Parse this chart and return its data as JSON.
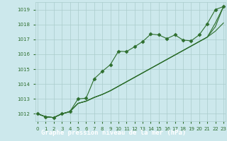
{
  "title": "Graphe pression niveau de la mer (hPa)",
  "background_color": "#cce8ec",
  "grid_color": "#aacccc",
  "line_color": "#2d6e2d",
  "xlim": [
    -0.3,
    23.3
  ],
  "ylim": [
    1011.5,
    1019.5
  ],
  "yticks": [
    1012,
    1013,
    1014,
    1015,
    1016,
    1017,
    1018,
    1019
  ],
  "xticks": [
    0,
    1,
    2,
    3,
    4,
    5,
    6,
    7,
    8,
    9,
    10,
    11,
    12,
    13,
    14,
    15,
    16,
    17,
    18,
    19,
    20,
    21,
    22,
    23
  ],
  "series": [
    [
      1012.0,
      1011.8,
      1011.75,
      1012.0,
      1012.15,
      1013.0,
      1013.05,
      1014.35,
      1014.85,
      1015.3,
      1016.2,
      1016.18,
      1016.5,
      1016.85,
      1017.35,
      1017.3,
      1017.05,
      1017.3,
      1016.95,
      1016.9,
      1017.3,
      1018.05,
      1019.0,
      1019.2
    ],
    [
      1012.0,
      1011.8,
      1011.75,
      1012.0,
      1012.15,
      1012.7,
      1012.85,
      1013.1,
      1013.3,
      1013.55,
      1013.85,
      1014.15,
      1014.45,
      1014.75,
      1015.05,
      1015.35,
      1015.65,
      1015.95,
      1016.25,
      1016.55,
      1016.85,
      1017.15,
      1017.55,
      1018.1
    ],
    [
      1012.0,
      1011.8,
      1011.75,
      1012.0,
      1012.15,
      1012.7,
      1012.85,
      1013.1,
      1013.3,
      1013.55,
      1013.85,
      1014.15,
      1014.45,
      1014.75,
      1015.05,
      1015.35,
      1015.65,
      1015.95,
      1016.25,
      1016.55,
      1016.85,
      1017.15,
      1018.1,
      1019.2
    ],
    [
      1012.0,
      1011.8,
      1011.75,
      1012.0,
      1012.15,
      1012.7,
      1012.85,
      1013.1,
      1013.3,
      1013.55,
      1013.85,
      1014.15,
      1014.45,
      1014.75,
      1015.05,
      1015.35,
      1015.65,
      1015.95,
      1016.25,
      1016.55,
      1016.85,
      1017.15,
      1017.85,
      1019.2
    ]
  ],
  "title_bg": "#2d6e2d",
  "title_color": "#ffffff",
  "title_fontsize": 6.5,
  "tick_label_color": "#2d6e2d",
  "tick_fontsize": 5.0
}
